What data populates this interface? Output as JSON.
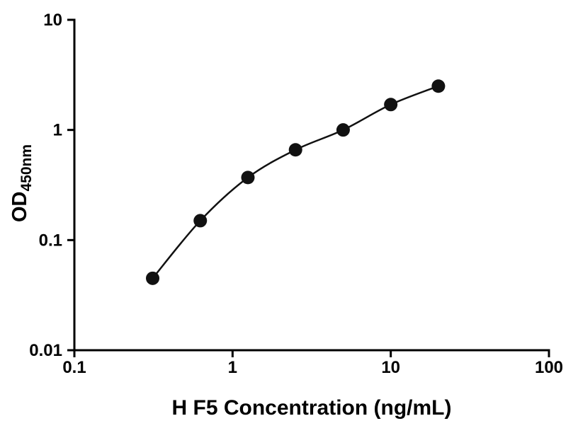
{
  "chart_data": {
    "type": "scatter",
    "xlabel": "H F5 Concentration (ng/mL)",
    "ylabel_main": "OD",
    "ylabel_sub": "450nm",
    "xscale": "log",
    "yscale": "log",
    "xlim": [
      0.1,
      100
    ],
    "ylim": [
      0.01,
      10
    ],
    "x": [
      0.3125,
      0.625,
      1.25,
      2.5,
      5,
      10,
      20
    ],
    "y": [
      0.045,
      0.15,
      0.37,
      0.66,
      1.0,
      1.7,
      2.5
    ],
    "x_ticks": {
      "values": [
        0.1,
        1,
        10,
        100
      ],
      "labels": [
        "0.1",
        "1",
        "10",
        "100"
      ]
    },
    "y_ticks": {
      "values": [
        0.01,
        0.1,
        1,
        10
      ],
      "labels": [
        "0.01",
        "0.1",
        "1",
        "10"
      ]
    },
    "marker_color": "#111111",
    "curve_color": "#111111",
    "axis_color": "#000000",
    "grid": false,
    "legend": false
  }
}
